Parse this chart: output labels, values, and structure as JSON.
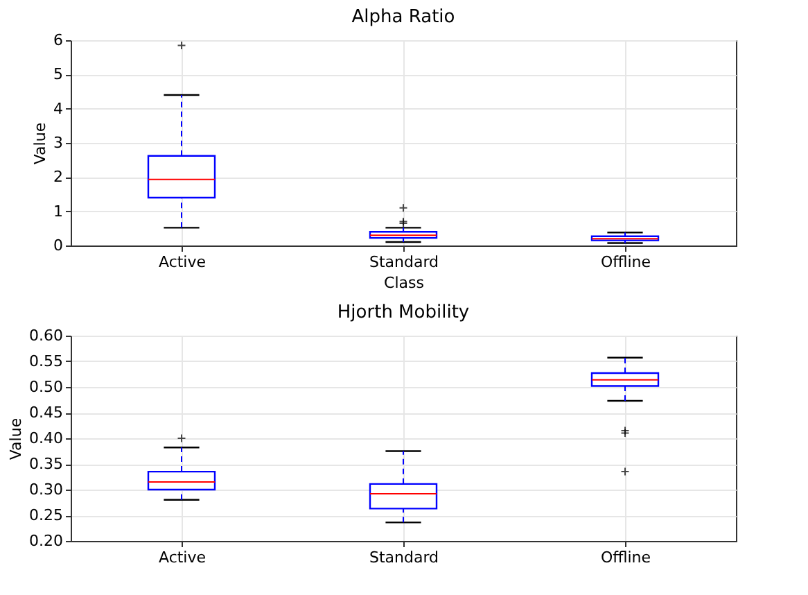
{
  "chart_data": [
    {
      "type": "box",
      "title": "Alpha Ratio",
      "xlabel": "Class",
      "ylabel": "Value",
      "categories": [
        "Active",
        "Standard",
        "Offline"
      ],
      "series": [
        {
          "color": "#0000ff",
          "boxes": [
            {
              "low": 0.52,
              "q1": 1.4,
              "median": 1.93,
              "q3": 2.62,
              "high": 4.4,
              "outliers": [
                5.85
              ]
            },
            {
              "low": 0.1,
              "q1": 0.22,
              "median": 0.3,
              "q3": 0.4,
              "high": 0.52,
              "outliers": [
                0.65,
                0.7,
                1.1
              ]
            },
            {
              "low": 0.07,
              "q1": 0.15,
              "median": 0.2,
              "q3": 0.27,
              "high": 0.38
            }
          ]
        }
      ],
      "ylim": [
        0,
        6
      ],
      "yticks": [
        0,
        1,
        2,
        3,
        4,
        5,
        6
      ],
      "grid": true
    },
    {
      "type": "box",
      "title": "Hjorth Mobility",
      "ylabel": "Value",
      "categories": [
        "Active",
        "Standard",
        "Offline"
      ],
      "series": [
        {
          "color": "#0000ff",
          "boxes": [
            {
              "low": 0.28,
              "q1": 0.3,
              "median": 0.315,
              "q3": 0.335,
              "high": 0.382,
              "outliers": [
                0.4
              ]
            },
            {
              "low": 0.236,
              "q1": 0.263,
              "median": 0.292,
              "q3": 0.311,
              "high": 0.375
            },
            {
              "low": 0.473,
              "q1": 0.502,
              "median": 0.514,
              "q3": 0.527,
              "high": 0.557,
              "outliers": [
                0.41,
                0.415,
                0.335
              ]
            }
          ]
        }
      ],
      "ylim": [
        0.2,
        0.6
      ],
      "yticks": [
        {
          "value": 0.2,
          "label": "0.20"
        },
        {
          "value": 0.25,
          "label": "0.25"
        },
        {
          "value": 0.3,
          "label": "0.30"
        },
        {
          "value": 0.35,
          "label": "0.35"
        },
        {
          "value": 0.4,
          "label": "0.40"
        },
        {
          "value": 0.45,
          "label": "0.45"
        },
        {
          "value": 0.5,
          "label": "0.50"
        },
        {
          "value": 0.55,
          "label": "0.55"
        },
        {
          "value": 0.6,
          "label": "0.60"
        }
      ],
      "grid": true
    }
  ]
}
